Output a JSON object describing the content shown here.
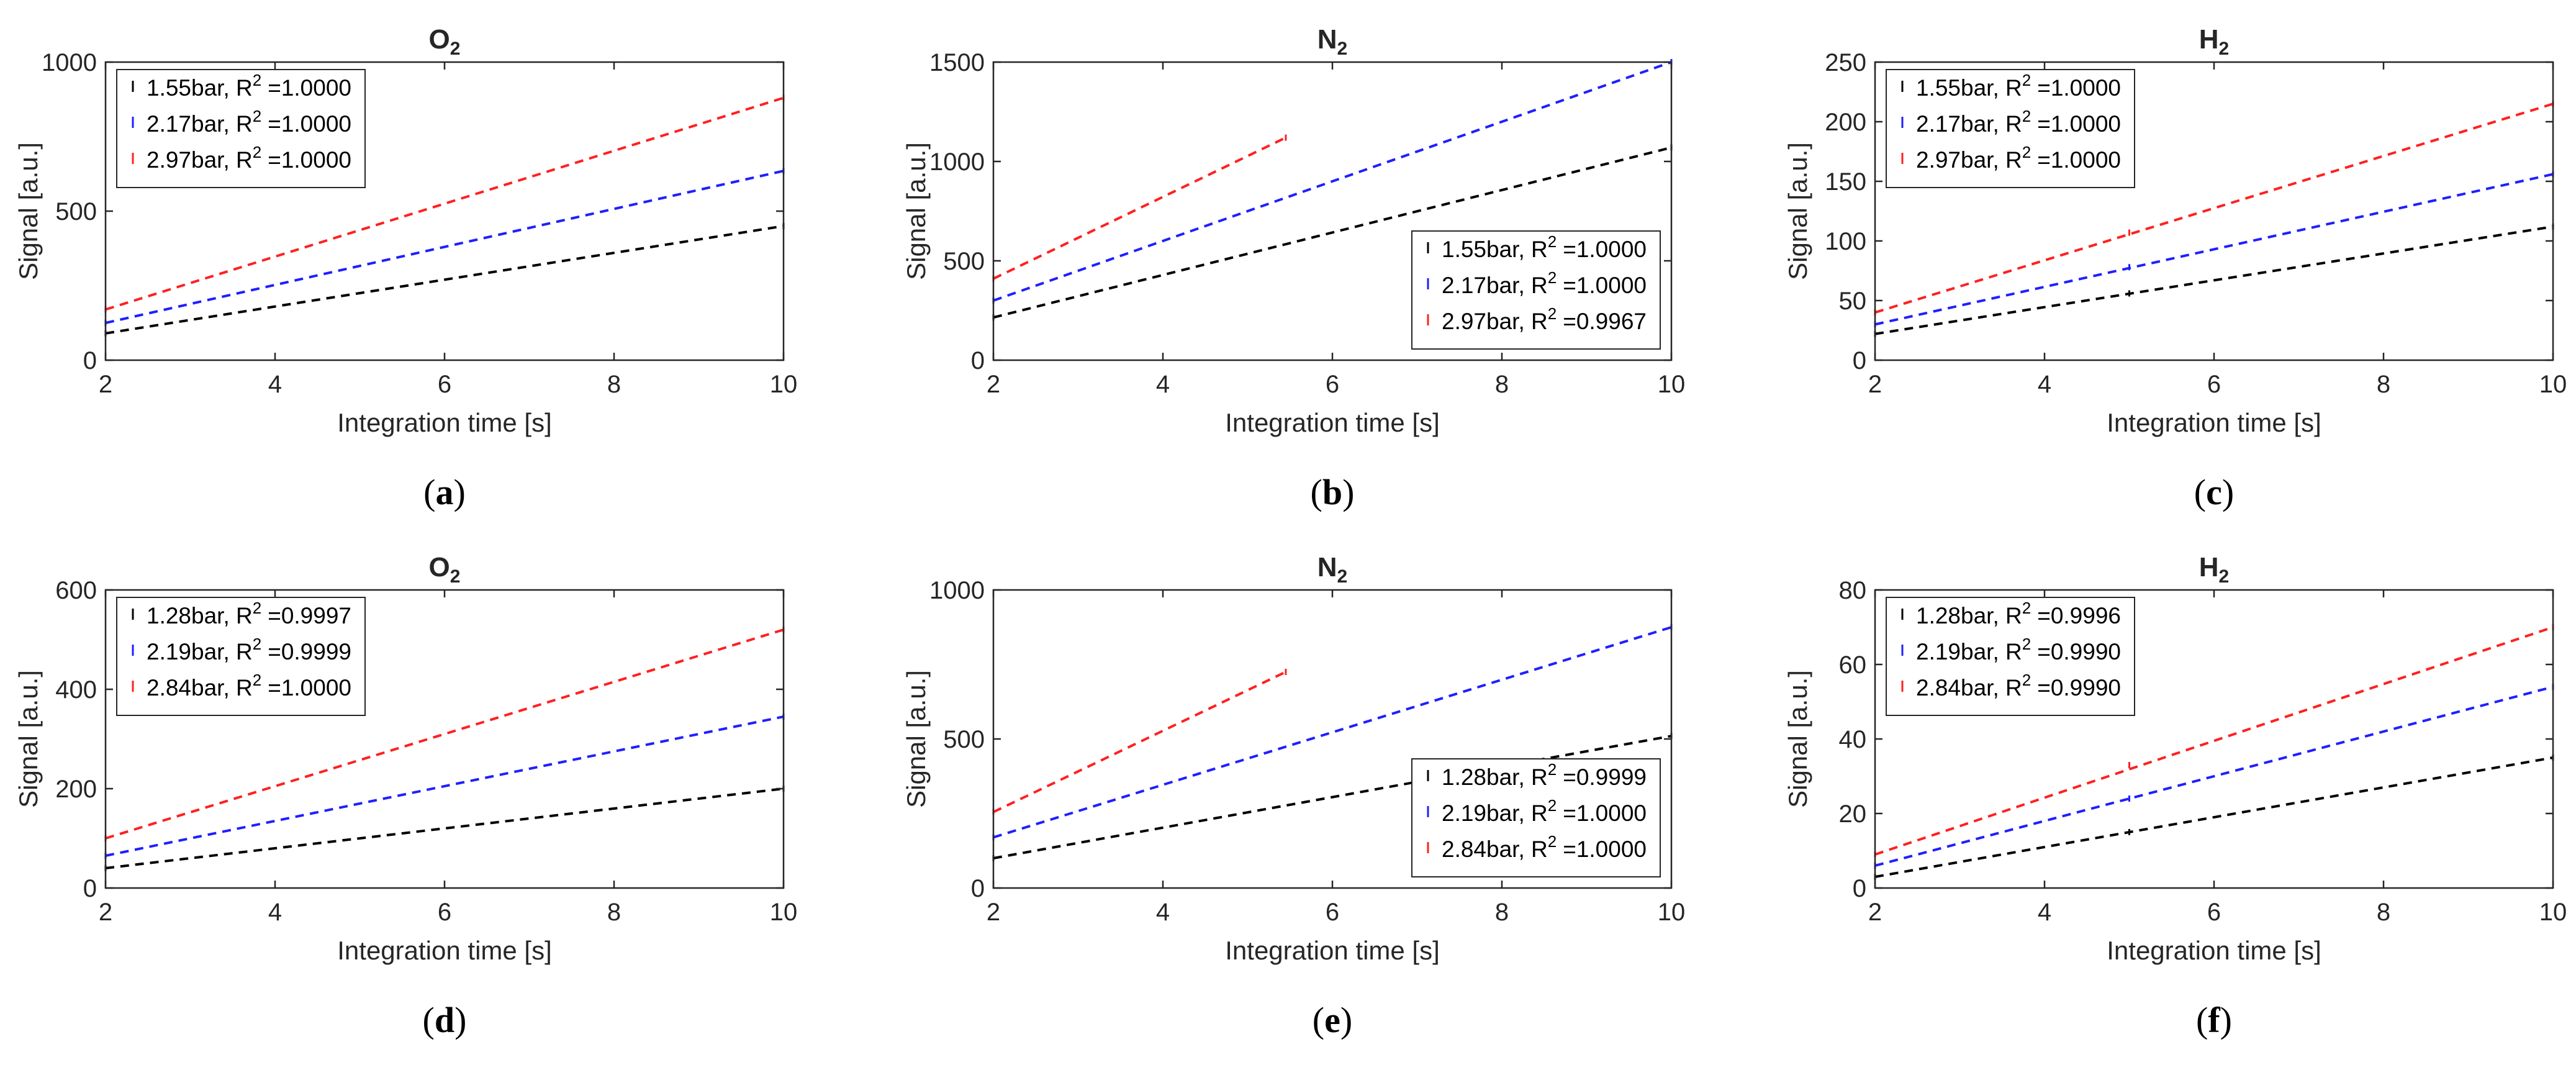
{
  "figure": {
    "colors": {
      "black": "#000000",
      "blue": "#1f1fff",
      "red": "#ff2020",
      "axis": "#262626",
      "text": "#262626"
    }
  },
  "chart_data": [
    {
      "id": "a",
      "type": "line",
      "title": "O",
      "title_sub": "2",
      "caption_open": "(",
      "caption_letter": "a",
      "caption_close": ")",
      "xlabel": "Integration time [s]",
      "ylabel": "Signal [a.u.]",
      "xlim": [
        2,
        10
      ],
      "ylim": [
        0,
        1000
      ],
      "xticks": [
        2,
        4,
        6,
        8,
        10
      ],
      "yticks": [
        0,
        500,
        1000
      ],
      "legend_position": "top-left",
      "series": [
        {
          "name": "1.55bar",
          "r2_prefix": "R",
          "r2_exp": "2",
          "r2_value": "=1.0000",
          "color": "#000000",
          "x": [
            2,
            10
          ],
          "y": [
            90,
            450
          ],
          "markers": [
            [
              2,
              90
            ],
            [
              10,
              450
            ]
          ]
        },
        {
          "name": "2.17bar",
          "r2_prefix": "R",
          "r2_exp": "2",
          "r2_value": "=1.0000",
          "color": "#1f1fff",
          "x": [
            2,
            10
          ],
          "y": [
            125,
            635
          ],
          "markers": [
            [
              2,
              125
            ],
            [
              10,
              635
            ]
          ]
        },
        {
          "name": "2.97bar",
          "r2_prefix": "R",
          "r2_exp": "2",
          "r2_value": "=1.0000",
          "color": "#ff2020",
          "x": [
            2,
            10
          ],
          "y": [
            170,
            880
          ],
          "markers": [
            [
              2,
              170
            ],
            [
              10,
              880
            ]
          ]
        }
      ]
    },
    {
      "id": "b",
      "type": "line",
      "title": "N",
      "title_sub": "2",
      "caption_open": "(",
      "caption_letter": "b",
      "caption_close": ")",
      "xlabel": "Integration time [s]",
      "ylabel": "Signal [a.u.]",
      "xlim": [
        2,
        10
      ],
      "ylim": [
        0,
        1500
      ],
      "xticks": [
        2,
        4,
        6,
        8,
        10
      ],
      "yticks": [
        0,
        500,
        1000,
        1500
      ],
      "legend_position": "bottom-right",
      "series": [
        {
          "name": "1.55bar",
          "r2_prefix": "R",
          "r2_exp": "2",
          "r2_value": "=1.0000",
          "color": "#000000",
          "x": [
            2,
            10
          ],
          "y": [
            215,
            1070
          ],
          "markers": [
            [
              2,
              215
            ],
            [
              10,
              1070
            ]
          ]
        },
        {
          "name": "2.17bar",
          "r2_prefix": "R",
          "r2_exp": "2",
          "r2_value": "=1.0000",
          "color": "#1f1fff",
          "x": [
            2,
            10
          ],
          "y": [
            300,
            1500
          ],
          "markers": [
            [
              2,
              300
            ],
            [
              10,
              1500
            ]
          ]
        },
        {
          "name": "2.97bar",
          "r2_prefix": "R",
          "r2_exp": "2",
          "r2_value": "=0.9967",
          "color": "#ff2020",
          "x": [
            2,
            5.45
          ],
          "y": [
            410,
            1120
          ],
          "markers": [
            [
              2,
              410
            ],
            [
              5.45,
              1120
            ]
          ]
        }
      ]
    },
    {
      "id": "c",
      "type": "line",
      "title": "H",
      "title_sub": "2",
      "caption_open": "(",
      "caption_letter": "c",
      "caption_close": ")",
      "xlabel": "Integration time [s]",
      "ylabel": "Signal [a.u.]",
      "xlim": [
        2,
        10
      ],
      "ylim": [
        0,
        250
      ],
      "xticks": [
        2,
        4,
        6,
        8,
        10
      ],
      "yticks": [
        0,
        50,
        100,
        150,
        200,
        250
      ],
      "legend_position": "top-left",
      "series": [
        {
          "name": "1.55bar",
          "r2_prefix": "R",
          "r2_exp": "2",
          "r2_value": "=1.0000",
          "color": "#000000",
          "x": [
            2,
            10
          ],
          "y": [
            22,
            112
          ],
          "markers": [
            [
              2,
              22
            ],
            [
              5,
              56
            ],
            [
              10,
              112
            ]
          ]
        },
        {
          "name": "2.17bar",
          "r2_prefix": "R",
          "r2_exp": "2",
          "r2_value": "=1.0000",
          "color": "#1f1fff",
          "x": [
            2,
            10
          ],
          "y": [
            30,
            156
          ],
          "markers": [
            [
              2,
              30
            ],
            [
              5,
              78
            ],
            [
              10,
              156
            ]
          ]
        },
        {
          "name": "2.97bar",
          "r2_prefix": "R",
          "r2_exp": "2",
          "r2_value": "=1.0000",
          "color": "#ff2020",
          "x": [
            2,
            10
          ],
          "y": [
            40,
            215
          ],
          "markers": [
            [
              2,
              40
            ],
            [
              5,
              107
            ],
            [
              10,
              215
            ]
          ]
        }
      ]
    },
    {
      "id": "d",
      "type": "line",
      "title": "O",
      "title_sub": "2",
      "caption_open": "(",
      "caption_letter": "d",
      "caption_close": ")",
      "xlabel": "Integration time [s]",
      "ylabel": "Signal [a.u.]",
      "xlim": [
        2,
        10
      ],
      "ylim": [
        0,
        600
      ],
      "xticks": [
        2,
        4,
        6,
        8,
        10
      ],
      "yticks": [
        0,
        200,
        400,
        600
      ],
      "legend_position": "top-left",
      "series": [
        {
          "name": "1.28bar",
          "r2_prefix": "R",
          "r2_exp": "2",
          "r2_value": "=0.9997",
          "color": "#000000",
          "x": [
            2,
            10
          ],
          "y": [
            40,
            200
          ],
          "markers": [
            [
              2,
              40
            ],
            [
              10,
              200
            ]
          ]
        },
        {
          "name": "2.19bar",
          "r2_prefix": "R",
          "r2_exp": "2",
          "r2_value": "=0.9999",
          "color": "#1f1fff",
          "x": [
            2,
            10
          ],
          "y": [
            65,
            345
          ],
          "markers": [
            [
              2,
              65
            ],
            [
              10,
              345
            ]
          ]
        },
        {
          "name": "2.84bar",
          "r2_prefix": "R",
          "r2_exp": "2",
          "r2_value": "=1.0000",
          "color": "#ff2020",
          "x": [
            2,
            10
          ],
          "y": [
            100,
            520
          ],
          "markers": [
            [
              2,
              100
            ],
            [
              10,
              520
            ]
          ]
        }
      ]
    },
    {
      "id": "e",
      "type": "line",
      "title": "N",
      "title_sub": "2",
      "caption_open": "(",
      "caption_letter": "e",
      "caption_close": ")",
      "xlabel": "Integration time [s]",
      "ylabel": "Signal [a.u.]",
      "xlim": [
        2,
        10
      ],
      "ylim": [
        0,
        1000
      ],
      "xticks": [
        2,
        4,
        6,
        8,
        10
      ],
      "yticks": [
        0,
        500,
        1000
      ],
      "legend_position": "bottom-right",
      "series": [
        {
          "name": "1.28bar",
          "r2_prefix": "R",
          "r2_exp": "2",
          "r2_value": "=0.9999",
          "color": "#000000",
          "x": [
            2,
            10
          ],
          "y": [
            100,
            510
          ],
          "markers": [
            [
              2,
              100
            ],
            [
              10,
              510
            ]
          ]
        },
        {
          "name": "2.19bar",
          "r2_prefix": "R",
          "r2_exp": "2",
          "r2_value": "=1.0000",
          "color": "#1f1fff",
          "x": [
            2,
            10
          ],
          "y": [
            170,
            875
          ],
          "markers": [
            [
              2,
              170
            ],
            [
              10,
              875
            ]
          ]
        },
        {
          "name": "2.84bar",
          "r2_prefix": "R",
          "r2_exp": "2",
          "r2_value": "=1.0000",
          "color": "#ff2020",
          "x": [
            2,
            5.45
          ],
          "y": [
            255,
            725
          ],
          "markers": [
            [
              2,
              255
            ],
            [
              5.45,
              725
            ]
          ]
        }
      ]
    },
    {
      "id": "f",
      "type": "line",
      "title": "H",
      "title_sub": "2",
      "caption_open": "(",
      "caption_letter": "f",
      "caption_close": ")",
      "xlabel": "Integration time [s]",
      "ylabel": "Signal [a.u.]",
      "xlim": [
        2,
        10
      ],
      "ylim": [
        0,
        80
      ],
      "xticks": [
        2,
        4,
        6,
        8,
        10
      ],
      "yticks": [
        0,
        20,
        40,
        60,
        80
      ],
      "legend_position": "top-left",
      "series": [
        {
          "name": "1.28bar",
          "r2_prefix": "R",
          "r2_exp": "2",
          "r2_value": "=0.9996",
          "color": "#000000",
          "x": [
            2,
            10
          ],
          "y": [
            3,
            35
          ],
          "markers": [
            [
              2,
              3
            ],
            [
              5,
              15
            ],
            [
              10,
              35
            ]
          ]
        },
        {
          "name": "2.19bar",
          "r2_prefix": "R",
          "r2_exp": "2",
          "r2_value": "=0.9990",
          "color": "#1f1fff",
          "x": [
            2,
            10
          ],
          "y": [
            6,
            54
          ],
          "markers": [
            [
              2,
              6
            ],
            [
              5,
              24
            ],
            [
              10,
              54
            ]
          ]
        },
        {
          "name": "2.84bar",
          "r2_prefix": "R",
          "r2_exp": "2",
          "r2_value": "=0.9990",
          "color": "#ff2020",
          "x": [
            2,
            10
          ],
          "y": [
            9,
            70
          ],
          "markers": [
            [
              2,
              9
            ],
            [
              5,
              33
            ],
            [
              10,
              70
            ]
          ]
        }
      ]
    }
  ]
}
